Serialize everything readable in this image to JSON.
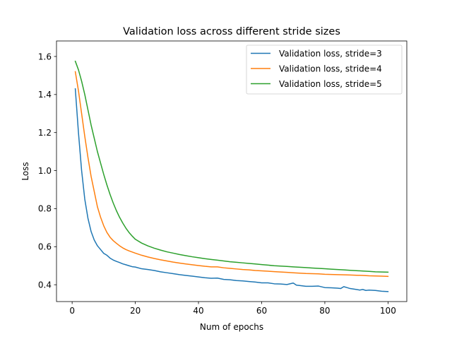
{
  "chart_data": {
    "type": "line",
    "title": "Validation loss across different stride sizes",
    "xlabel": "Num of epochs",
    "ylabel": "Loss",
    "xlim": [
      -4.95,
      105.95
    ],
    "ylim": [
      0.3115,
      1.6815
    ],
    "xticks": [
      0,
      20,
      40,
      60,
      80,
      100
    ],
    "yticks": [
      0.4,
      0.6,
      0.8,
      1.0,
      1.2,
      1.4,
      1.6
    ],
    "ytick_labels": [
      "0.4",
      "0.6",
      "0.8",
      "1.0",
      "1.2",
      "1.4",
      "1.6"
    ],
    "grid": false,
    "legend_position": "top-right",
    "series": [
      {
        "name": "Validation loss, stride=3",
        "color": "#1f77b4",
        "x": [
          1,
          2,
          3,
          4,
          5,
          6,
          7,
          8,
          9,
          10,
          11,
          12,
          13,
          14,
          15,
          16,
          17,
          18,
          19,
          20,
          22,
          24,
          26,
          28,
          30,
          32,
          34,
          36,
          38,
          40,
          42,
          44,
          46,
          48,
          50,
          52,
          54,
          56,
          58,
          60,
          62,
          64,
          66,
          68,
          70,
          71,
          72,
          74,
          76,
          78,
          80,
          82,
          84,
          85,
          86,
          87,
          88,
          90,
          91,
          92,
          93,
          94,
          96,
          98,
          100
        ],
        "y": [
          1.43,
          1.2,
          1.0,
          0.85,
          0.75,
          0.68,
          0.635,
          0.605,
          0.585,
          0.565,
          0.555,
          0.54,
          0.53,
          0.523,
          0.517,
          0.51,
          0.505,
          0.5,
          0.495,
          0.493,
          0.484,
          0.48,
          0.475,
          0.468,
          0.463,
          0.458,
          0.453,
          0.449,
          0.445,
          0.441,
          0.437,
          0.434,
          0.435,
          0.428,
          0.426,
          0.422,
          0.42,
          0.417,
          0.414,
          0.41,
          0.41,
          0.405,
          0.404,
          0.401,
          0.409,
          0.398,
          0.396,
          0.392,
          0.392,
          0.393,
          0.385,
          0.384,
          0.382,
          0.38,
          0.39,
          0.385,
          0.38,
          0.375,
          0.372,
          0.375,
          0.37,
          0.372,
          0.37,
          0.366,
          0.364
        ]
      },
      {
        "name": "Validation loss, stride=4",
        "color": "#ff7f0e",
        "x": [
          1,
          2,
          3,
          4,
          5,
          6,
          7,
          8,
          9,
          10,
          11,
          12,
          13,
          14,
          15,
          16,
          17,
          18,
          19,
          20,
          22,
          24,
          26,
          28,
          30,
          32,
          34,
          36,
          38,
          40,
          42,
          44,
          46,
          48,
          50,
          52,
          54,
          56,
          58,
          60,
          62,
          64,
          66,
          68,
          70,
          72,
          74,
          76,
          78,
          80,
          82,
          84,
          86,
          88,
          90,
          92,
          94,
          96,
          98,
          100
        ],
        "y": [
          1.52,
          1.42,
          1.3,
          1.18,
          1.07,
          0.97,
          0.89,
          0.81,
          0.755,
          0.71,
          0.675,
          0.65,
          0.632,
          0.618,
          0.605,
          0.594,
          0.585,
          0.578,
          0.572,
          0.566,
          0.555,
          0.546,
          0.538,
          0.531,
          0.525,
          0.519,
          0.514,
          0.509,
          0.505,
          0.501,
          0.497,
          0.494,
          0.494,
          0.489,
          0.486,
          0.483,
          0.48,
          0.478,
          0.475,
          0.473,
          0.471,
          0.469,
          0.467,
          0.465,
          0.463,
          0.461,
          0.459,
          0.458,
          0.457,
          0.455,
          0.454,
          0.453,
          0.452,
          0.451,
          0.45,
          0.449,
          0.447,
          0.446,
          0.445,
          0.444
        ]
      },
      {
        "name": "Validation loss, stride=5",
        "color": "#2ca02c",
        "x": [
          1,
          2,
          3,
          4,
          5,
          6,
          7,
          8,
          9,
          10,
          11,
          12,
          13,
          14,
          15,
          16,
          17,
          18,
          19,
          20,
          22,
          24,
          26,
          28,
          30,
          32,
          34,
          36,
          38,
          40,
          42,
          44,
          46,
          48,
          50,
          52,
          54,
          56,
          58,
          60,
          62,
          64,
          66,
          68,
          70,
          72,
          74,
          76,
          78,
          80,
          82,
          84,
          86,
          88,
          90,
          92,
          94,
          96,
          98,
          100
        ],
        "y": [
          1.575,
          1.53,
          1.47,
          1.4,
          1.32,
          1.24,
          1.17,
          1.1,
          1.04,
          0.98,
          0.925,
          0.875,
          0.83,
          0.79,
          0.755,
          0.725,
          0.698,
          0.675,
          0.656,
          0.639,
          0.619,
          0.604,
          0.592,
          0.582,
          0.573,
          0.566,
          0.559,
          0.553,
          0.547,
          0.542,
          0.537,
          0.533,
          0.529,
          0.525,
          0.521,
          0.518,
          0.515,
          0.512,
          0.509,
          0.506,
          0.503,
          0.5,
          0.498,
          0.496,
          0.494,
          0.492,
          0.49,
          0.488,
          0.486,
          0.484,
          0.482,
          0.48,
          0.478,
          0.476,
          0.474,
          0.472,
          0.47,
          0.468,
          0.467,
          0.466
        ]
      }
    ]
  }
}
